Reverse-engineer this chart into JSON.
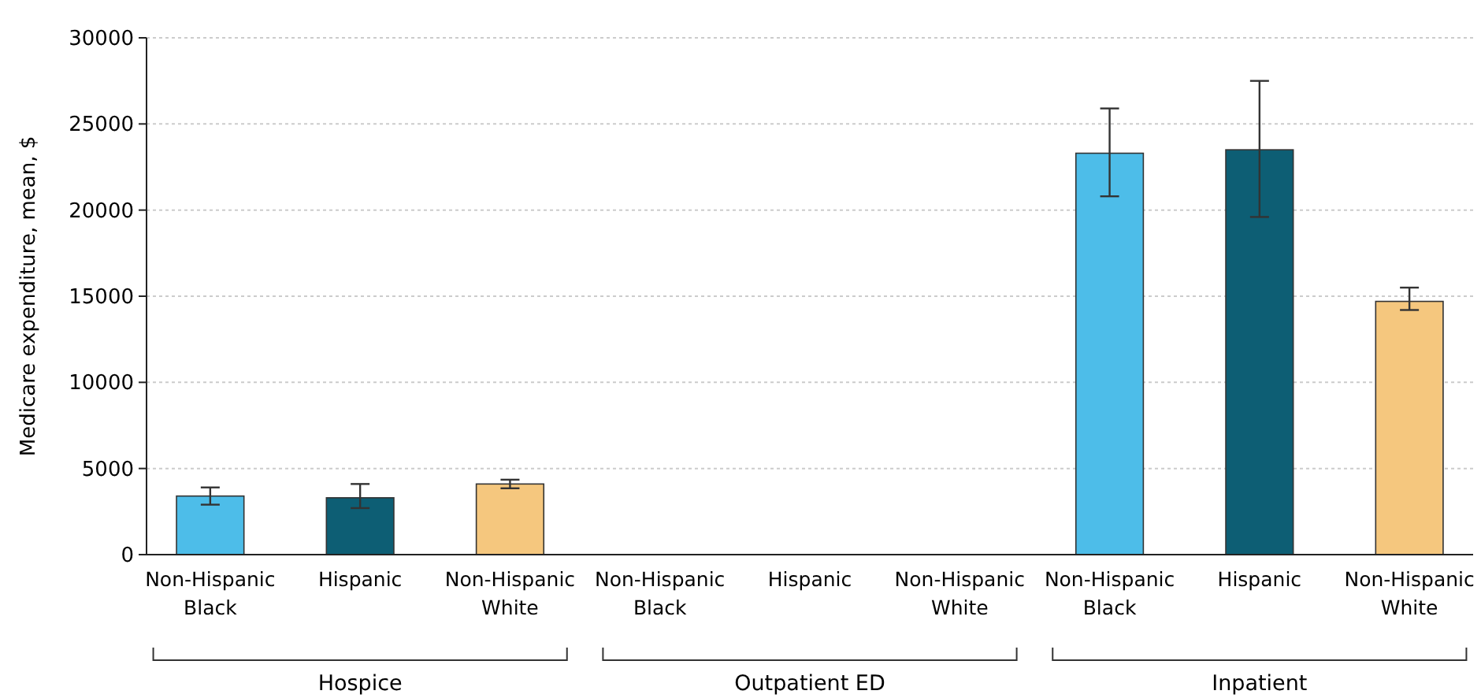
{
  "chart_data": {
    "type": "bar",
    "ylabel": "Medicare expenditure, mean, $",
    "categories": [
      "Non-Hispanic Black",
      "Hispanic",
      "Non-Hispanic White",
      "Non-Hispanic Black",
      "Hispanic",
      "Non-Hispanic White",
      "Non-Hispanic Black",
      "Hispanic",
      "Non-Hispanic White"
    ],
    "values": [
      3400,
      3300,
      4100,
      null,
      null,
      null,
      23300,
      23500,
      14700
    ],
    "errors": [
      [
        2900,
        3900
      ],
      [
        2700,
        4100
      ],
      [
        3850,
        4350
      ],
      null,
      null,
      null,
      [
        20800,
        25900
      ],
      [
        19600,
        27500
      ],
      [
        14200,
        15500
      ]
    ],
    "colors": [
      "#4dbde9",
      "#0d5e74",
      "#f5c77e",
      null,
      null,
      null,
      "#4dbde9",
      "#0d5e74",
      "#f5c77e"
    ],
    "ylim": [
      0,
      30000
    ],
    "yticks": [
      0,
      5000,
      10000,
      15000,
      20000,
      25000,
      30000
    ],
    "grid": "y",
    "annotations": [
      "Hospice",
      "Outpatient ED",
      "Inpatient"
    ]
  }
}
